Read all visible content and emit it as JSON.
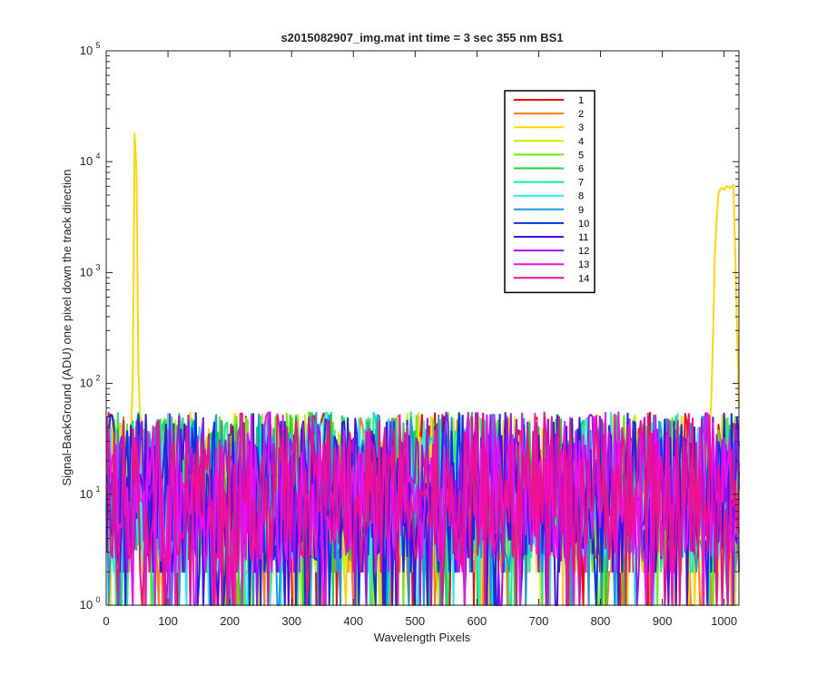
{
  "chart_data": {
    "type": "line",
    "title": "s2015082907_img.mat int time = 3 sec  355 nm BS1",
    "xlabel": "Wavelength Pixels",
    "ylabel": "Signal-BackGround (ADU) one pixel down the track direction",
    "xlim": [
      0,
      1024
    ],
    "ylim": [
      1,
      100000
    ],
    "yscale": "log",
    "x_ticks": [
      0,
      100,
      200,
      300,
      400,
      500,
      600,
      700,
      800,
      900,
      1000
    ],
    "x_tick_labels": [
      "0",
      "100",
      "200",
      "300",
      "400",
      "500",
      "600",
      "700",
      "800",
      "900",
      "1000"
    ],
    "y_ticks": [
      {
        "value": 1,
        "base": "10",
        "exp": "0"
      },
      {
        "value": 10,
        "base": "10",
        "exp": "1"
      },
      {
        "value": 100,
        "base": "10",
        "exp": "2"
      },
      {
        "value": 1000,
        "base": "10",
        "exp": "3"
      },
      {
        "value": 10000,
        "base": "10",
        "exp": "4"
      },
      {
        "value": 100000,
        "base": "10",
        "exp": "5"
      }
    ],
    "grid": false,
    "legend_position": "top-right",
    "noise_band": {
      "min": 1,
      "max": 55
    },
    "series": [
      {
        "name": "1",
        "color": "#ff0000"
      },
      {
        "name": "2",
        "color": "#ff7a1a"
      },
      {
        "name": "3",
        "color": "#ffd700",
        "peaks": [
          {
            "x": [
              40,
              43,
              45,
              46,
              47,
              48,
              49,
              51,
              53,
              56
            ],
            "y": [
              30,
              120,
              1500,
              18000,
              48000,
              45000,
              8000,
              300,
              60,
              30
            ]
          },
          {
            "x": [
              975,
              980,
              985,
              990,
              995,
              1000,
              1005,
              1010,
              1015,
              1020,
              1022,
              1024
            ],
            "y": [
              30,
              80,
              1500,
              5000,
              5900,
              5600,
              6100,
              5700,
              6200,
              600,
              150,
              60
            ]
          }
        ]
      },
      {
        "name": "4",
        "color": "#c8f000"
      },
      {
        "name": "5",
        "color": "#66ee00"
      },
      {
        "name": "6",
        "color": "#11dd33"
      },
      {
        "name": "7",
        "color": "#11ee99"
      },
      {
        "name": "8",
        "color": "#22eeee"
      },
      {
        "name": "9",
        "color": "#1a99dd"
      },
      {
        "name": "10",
        "color": "#0033ee"
      },
      {
        "name": "11",
        "color": "#4411ee"
      },
      {
        "name": "12",
        "color": "#a811ee"
      },
      {
        "name": "13",
        "color": "#ee11ee"
      },
      {
        "name": "14",
        "color": "#ee1188"
      }
    ]
  }
}
